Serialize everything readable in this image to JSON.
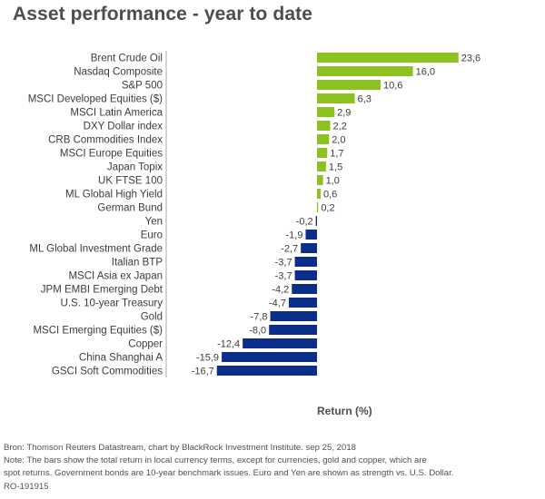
{
  "title": "Asset performance - year to date",
  "chart_data": {
    "type": "bar",
    "orientation": "horizontal",
    "categories": [
      "Brent Crude Oil",
      "Nasdaq Composite",
      "S&P 500",
      "MSCI Developed Equities ($)",
      "MSCI Latin America",
      "DXY Dollar index",
      "CRB Commodities Index",
      "MSCI Europe Equities",
      "Japan Topix",
      "UK FTSE 100",
      "ML Global High Yield",
      "German Bund",
      "Yen",
      "Euro",
      "ML Global Investment Grade",
      "Italian BTP",
      "MSCI Asia ex Japan",
      "JPM EMBI Emerging Debt",
      "U.S. 10-year Treasury",
      "Gold",
      "MSCI Emerging Equities ($)",
      "Copper",
      "China Shanghai A",
      "GSCI Soft Commodities"
    ],
    "values": [
      23.6,
      16.0,
      10.6,
      6.3,
      2.9,
      2.2,
      2.0,
      1.7,
      1.5,
      1.0,
      0.6,
      0.2,
      -0.2,
      -1.9,
      -2.7,
      -3.7,
      -3.7,
      -4.2,
      -4.7,
      -7.8,
      -8.0,
      -12.4,
      -15.9,
      -16.7
    ],
    "value_labels": [
      "23,6",
      "16,0",
      "10,6",
      "6,3",
      "2,9",
      "2,2",
      "2,0",
      "1,7",
      "1,5",
      "1,0",
      "0,6",
      "0,2",
      "-0,2",
      "-1,9",
      "-2,7",
      "-3,7",
      "-3,7",
      "-4,2",
      "-4,7",
      "-7,8",
      "-8,0",
      "-12,4",
      "-15,9",
      "-16,7"
    ],
    "xlabel": "Return (%)",
    "xlim": [
      -30,
      30
    ],
    "grid": false,
    "colors": {
      "positive": "#8cc21f",
      "negative": "#0b2e8a",
      "divider": "#aaaaaa"
    }
  },
  "footer": {
    "lines": [
      "Bron: Thomson Reuters Datastream, chart by BlackRock Investment Institute.  sep 25, 2018",
      "Note: The bars show the total return in local currency terms, except for currencies, gold and copper, which are",
      "spot returns. Government bonds are 10-year benchmark issues. Euro and Yen are shown as strength vs. U.S. Dollar.",
      "RO-191915"
    ]
  }
}
